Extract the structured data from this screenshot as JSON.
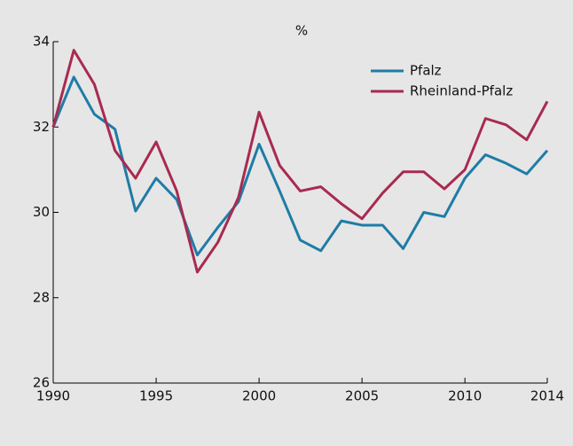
{
  "chart_data": {
    "type": "line",
    "title": "%",
    "x": [
      1990,
      1991,
      1992,
      1993,
      1994,
      1995,
      1996,
      1997,
      1998,
      1999,
      2000,
      2001,
      2002,
      2003,
      2004,
      2005,
      2006,
      2007,
      2008,
      2009,
      2010,
      2011,
      2012,
      2013,
      2014
    ],
    "series": [
      {
        "name": "Pfalz",
        "color": "#1f7ca6",
        "values": [
          32.0,
          33.17,
          32.3,
          31.95,
          30.03,
          30.8,
          30.3,
          29.0,
          29.65,
          30.25,
          31.6,
          30.5,
          29.35,
          29.1,
          29.8,
          29.7,
          29.7,
          29.15,
          30.0,
          29.9,
          30.8,
          31.35,
          31.15,
          30.9,
          31.45
        ]
      },
      {
        "name": "Rheinland-Pfalz",
        "color": "#a82a50",
        "values": [
          32.0,
          33.8,
          33.0,
          31.45,
          30.8,
          31.65,
          30.5,
          28.6,
          29.3,
          30.35,
          32.35,
          31.1,
          30.5,
          30.6,
          30.2,
          29.85,
          30.45,
          30.95,
          30.95,
          30.55,
          31.0,
          32.2,
          32.05,
          31.7,
          32.6
        ]
      }
    ],
    "xlim": [
      1990,
      2014
    ],
    "xticks": [
      1990,
      1995,
      2000,
      2005,
      2010,
      2014
    ],
    "ylim": [
      26,
      34
    ],
    "yticks": [
      26,
      28,
      30,
      32,
      34
    ],
    "legend": "upper right"
  }
}
